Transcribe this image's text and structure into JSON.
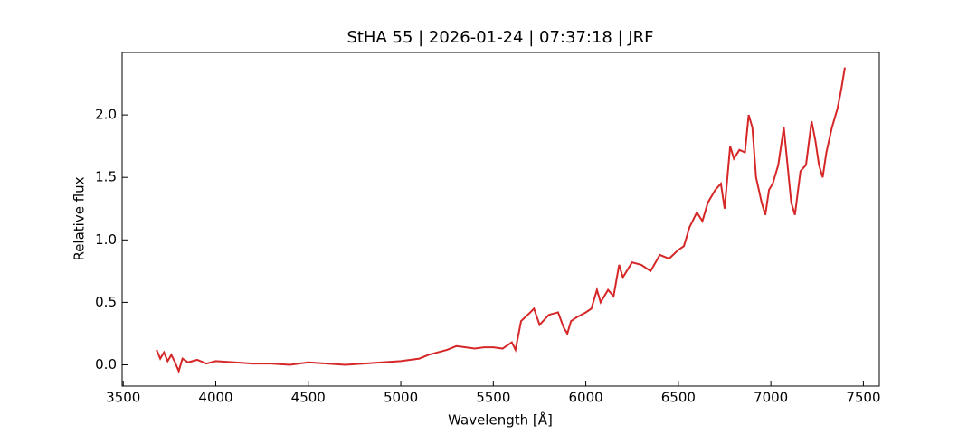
{
  "chart_data": {
    "type": "line",
    "title": "StHA 55 | 2026-01-24 | 07:37:18 | JRF",
    "xlabel": "Wavelength [Å]",
    "ylabel": "Relative flux",
    "x": [
      3680,
      3700,
      3720,
      3740,
      3760,
      3780,
      3800,
      3820,
      3850,
      3900,
      3950,
      4000,
      4100,
      4200,
      4300,
      4400,
      4500,
      4600,
      4700,
      4800,
      4900,
      5000,
      5050,
      5100,
      5150,
      5200,
      5250,
      5300,
      5350,
      5400,
      5450,
      5500,
      5550,
      5600,
      5620,
      5650,
      5700,
      5720,
      5750,
      5800,
      5850,
      5880,
      5900,
      5920,
      5950,
      6000,
      6030,
      6060,
      6080,
      6120,
      6150,
      6180,
      6200,
      6250,
      6300,
      6350,
      6400,
      6450,
      6500,
      6530,
      6560,
      6600,
      6630,
      6660,
      6700,
      6730,
      6750,
      6780,
      6800,
      6830,
      6860,
      6880,
      6900,
      6920,
      6950,
      6970,
      6990,
      7010,
      7040,
      7070,
      7090,
      7110,
      7130,
      7160,
      7190,
      7220,
      7240,
      7260,
      7280,
      7300,
      7330,
      7360,
      7380,
      7400
    ],
    "series": [
      {
        "name": "flux",
        "color": "#d62728",
        "values": [
          0.12,
          0.05,
          0.1,
          0.03,
          0.08,
          0.02,
          -0.05,
          0.05,
          0.02,
          0.04,
          0.01,
          0.03,
          0.02,
          0.01,
          0.01,
          0.0,
          0.02,
          0.01,
          0.0,
          0.01,
          0.02,
          0.03,
          0.04,
          0.05,
          0.08,
          0.1,
          0.12,
          0.15,
          0.14,
          0.13,
          0.14,
          0.14,
          0.13,
          0.18,
          0.12,
          0.35,
          0.42,
          0.45,
          0.32,
          0.4,
          0.42,
          0.3,
          0.25,
          0.35,
          0.38,
          0.42,
          0.45,
          0.6,
          0.5,
          0.6,
          0.55,
          0.8,
          0.7,
          0.82,
          0.8,
          0.75,
          0.88,
          0.85,
          0.92,
          0.95,
          1.1,
          1.22,
          1.15,
          1.3,
          1.4,
          1.45,
          1.25,
          1.75,
          1.65,
          1.72,
          1.7,
          2.0,
          1.9,
          1.5,
          1.3,
          1.2,
          1.4,
          1.45,
          1.6,
          1.9,
          1.6,
          1.3,
          1.2,
          1.55,
          1.6,
          1.95,
          1.8,
          1.6,
          1.5,
          1.7,
          1.9,
          2.05,
          2.2,
          2.38
        ]
      }
    ],
    "xlim": [
      3494,
      7586
    ],
    "ylim": [
      -0.17,
      2.5
    ],
    "xticks": [
      3500,
      4000,
      4500,
      5000,
      5500,
      6000,
      6500,
      7000,
      7500
    ],
    "yticks": [
      {
        "value": 0,
        "label": "0.0"
      },
      0.5,
      {
        "value": 1,
        "label": "1.0"
      },
      1.5,
      {
        "value": 2,
        "label": "2.0"
      }
    ],
    "grid": false
  }
}
